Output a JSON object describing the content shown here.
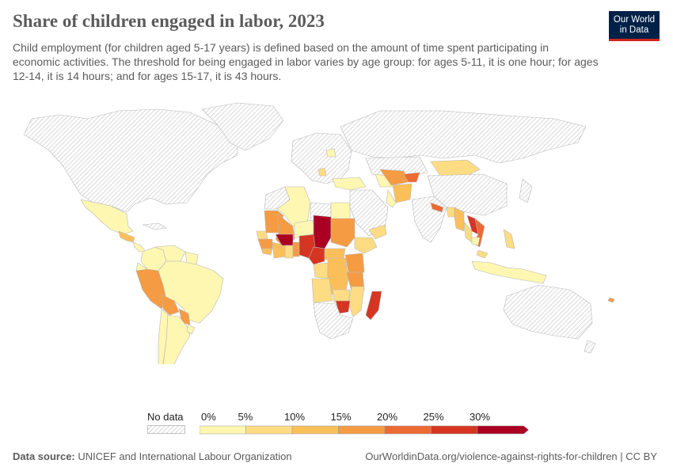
{
  "title": "Share of children engaged in labor, 2023",
  "subtitle": "Child employment (for children aged 5-17 years) is defined based on the amount of time spent participating in economic activities. The threshold for being engaged in labor varies by age group: for ages 5-11, it is one hour; for ages 12-14, it is 14 hours; and for ages 15-17, it is 43 hours.",
  "logo": {
    "line1": "Our World",
    "line2": "in Data"
  },
  "legend": {
    "no_data_label": "No data",
    "ticks": [
      "0%",
      "5%",
      "10%",
      "15%",
      "20%",
      "25%",
      "30%"
    ],
    "colors": [
      "#fef7b1",
      "#fddc83",
      "#fbbf5a",
      "#f59b44",
      "#ec6a33",
      "#d63522",
      "#ab0022"
    ]
  },
  "footer": {
    "source_label": "Data source:",
    "source_text": "UNICEF and International Labour Organization",
    "url": "OurWorldinData.org/violence-against-rights-for-children | CC BY"
  }
}
